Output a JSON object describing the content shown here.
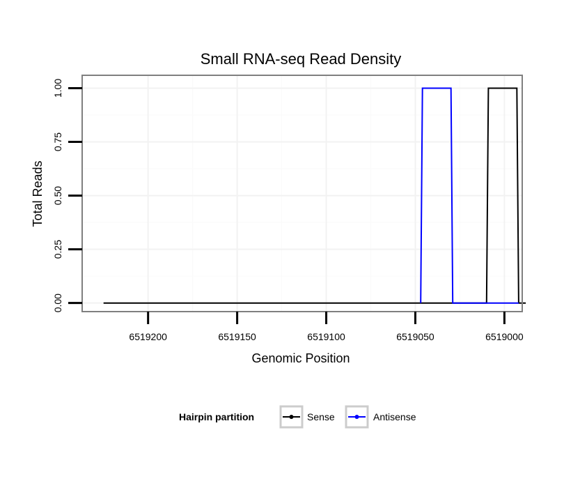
{
  "chart_data": {
    "type": "line",
    "title": "Small RNA-seq Read Density",
    "xlabel": "Genomic Position",
    "ylabel": "Total Reads",
    "x_reversed": true,
    "xlim": [
      6519237,
      6518990
    ],
    "ylim": [
      -0.04,
      1.06
    ],
    "x_ticks": [
      6519200,
      6519150,
      6519100,
      6519050,
      6519000
    ],
    "x_tick_labels": [
      "6519200",
      "6519150",
      "6519100",
      "6519050",
      "6519000"
    ],
    "y_ticks": [
      0,
      0.25,
      0.5,
      0.75,
      1.0
    ],
    "y_tick_labels": [
      "0.00",
      "0.25",
      "0.50",
      "0.75",
      "1.00"
    ],
    "grid": true,
    "legend": {
      "title": "Hairpin partition",
      "position": "bottom"
    },
    "series": [
      {
        "name": "Sense",
        "color": "#000000",
        "x": [
          6519225,
          6519010,
          6519009,
          6518993,
          6518992,
          6518988
        ],
        "y": [
          0,
          0,
          1,
          1,
          0,
          0
        ]
      },
      {
        "name": "Antisense",
        "color": "#0000ff",
        "x": [
          6519047,
          6519046,
          6519030,
          6519029,
          6518992
        ],
        "y": [
          0,
          1,
          1,
          0,
          0
        ]
      }
    ]
  }
}
